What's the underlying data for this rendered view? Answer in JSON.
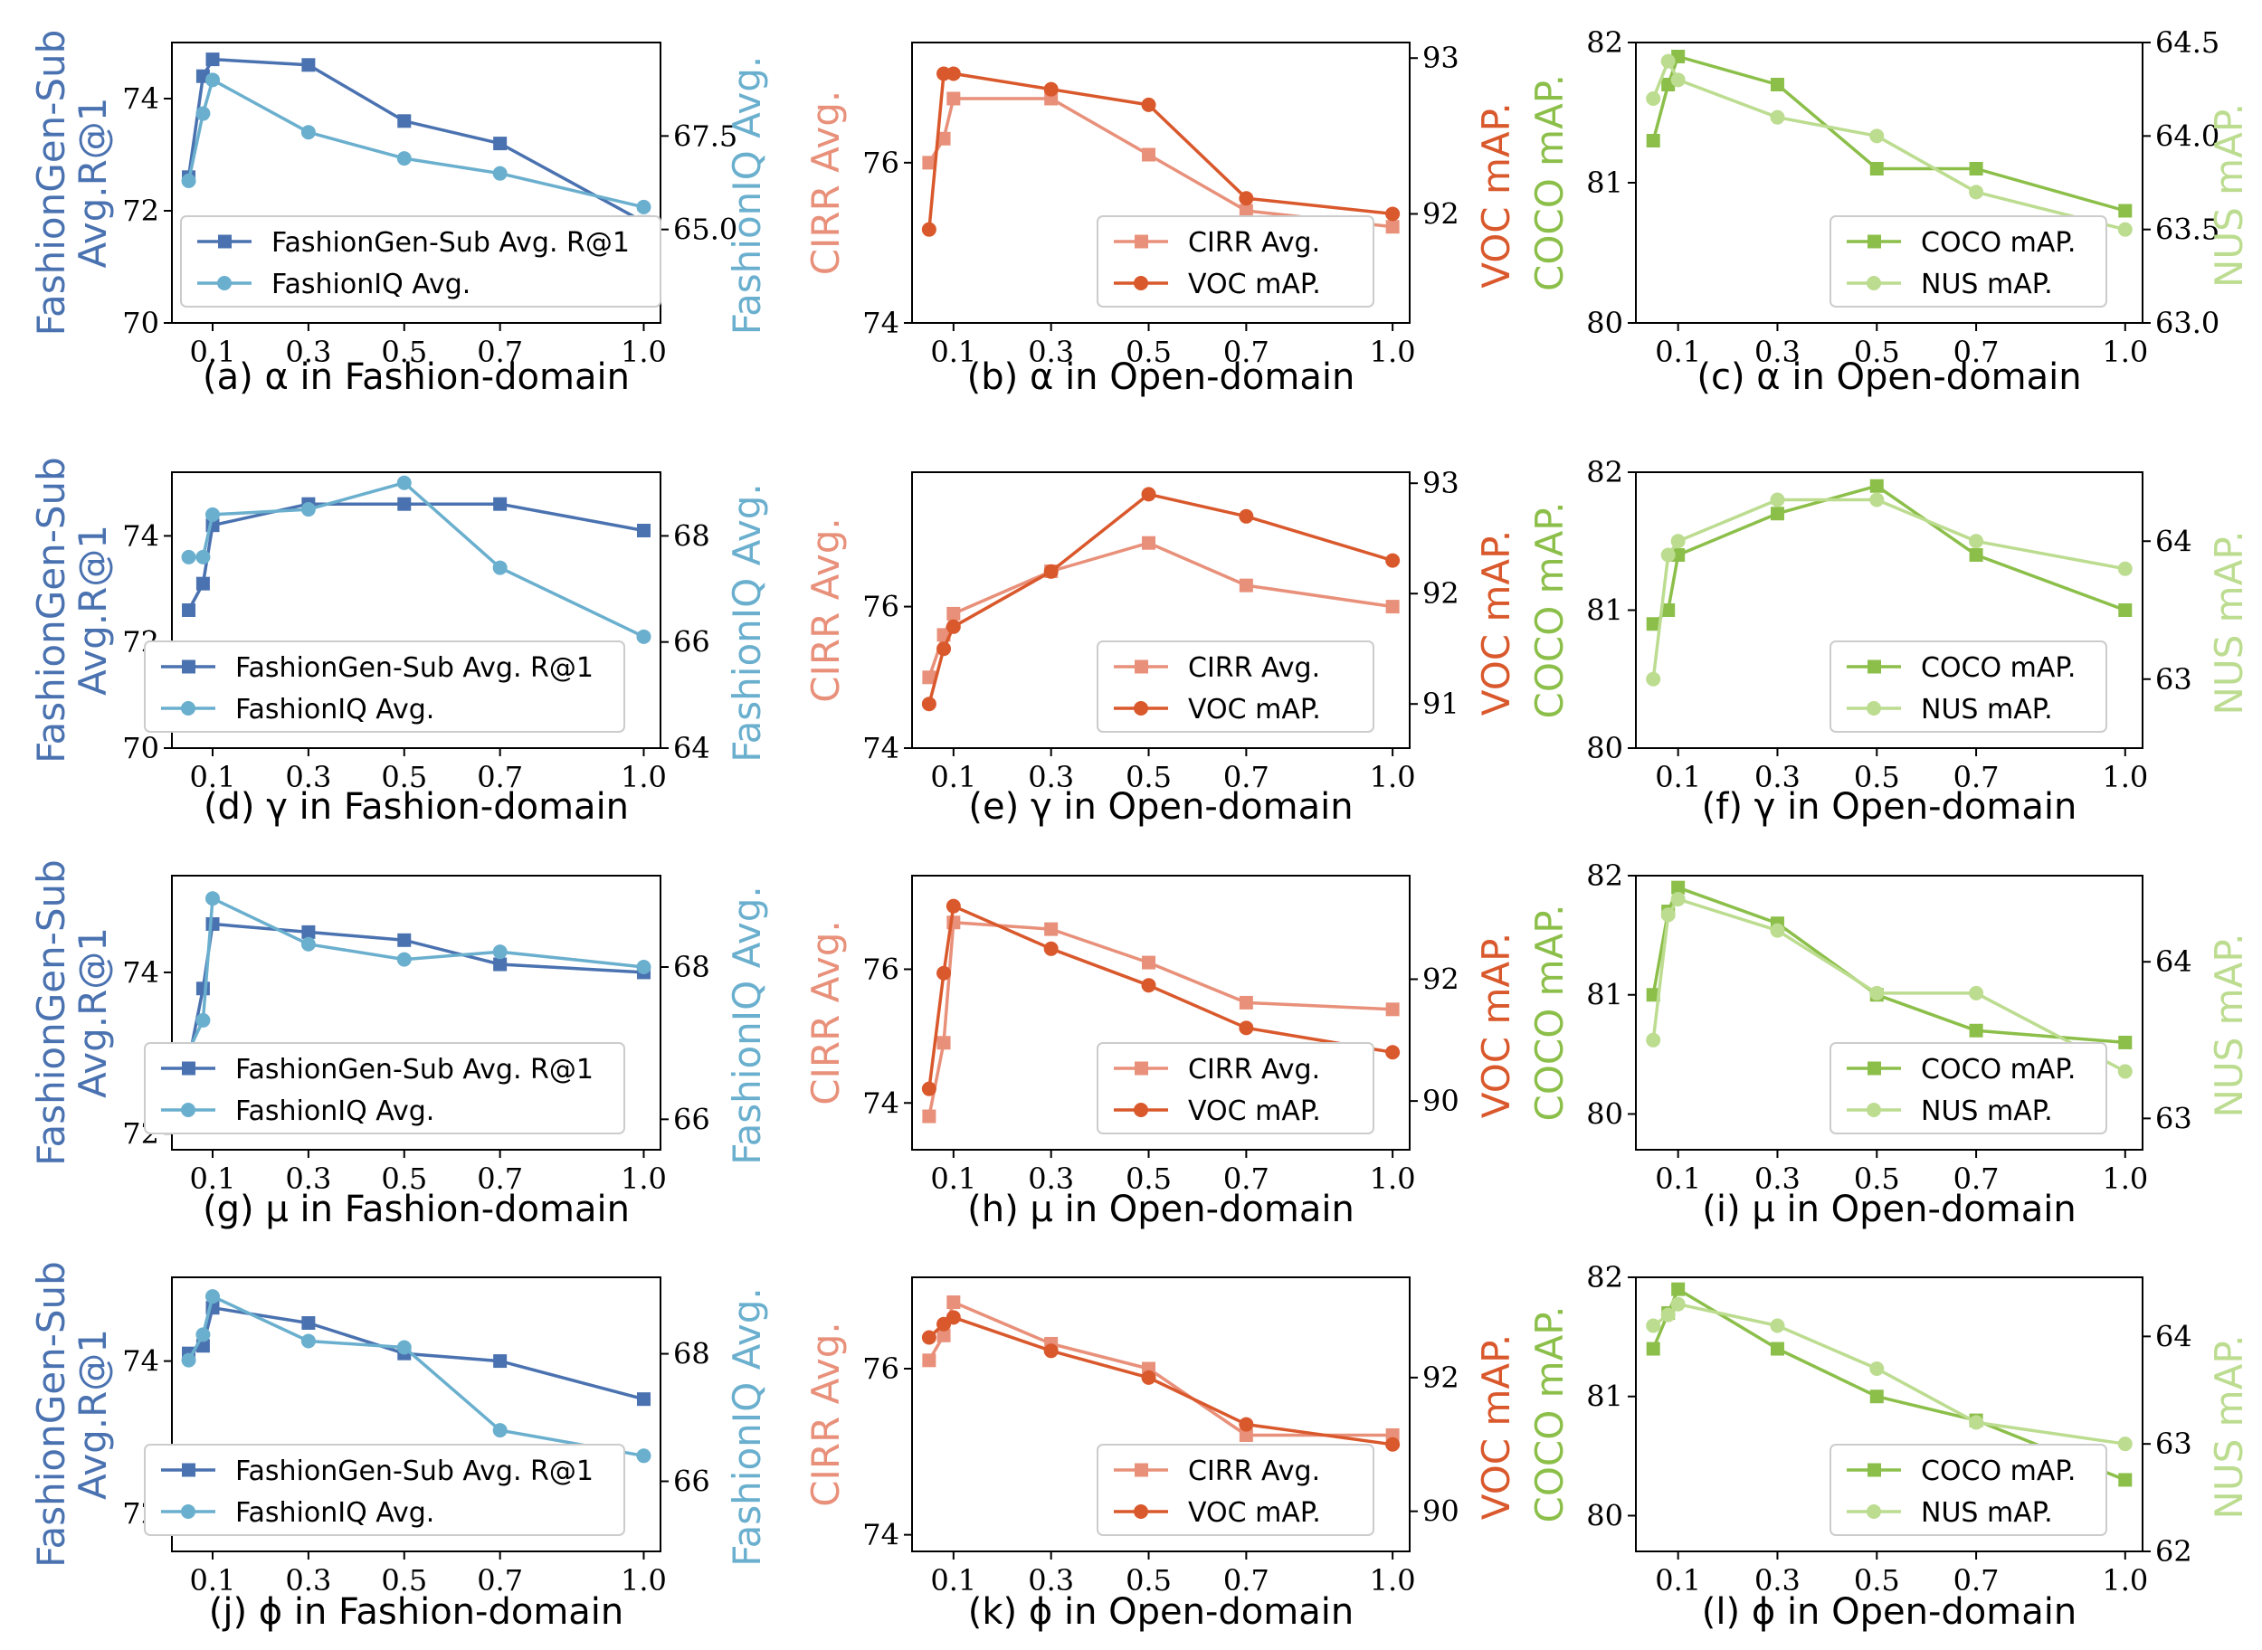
{
  "colors": {
    "fashion_left": "#4a72b0",
    "fashion_right": "#6aafce",
    "open_left": "#e8907a",
    "open_right": "#d9582c",
    "coco": "#8cbf4a",
    "nus": "#bcdc90"
  },
  "chart_data": [
    {
      "type": "line",
      "caption": "(a) α in Fashion-domain",
      "x_ticks": [
        "0.1",
        "0.3",
        "0.5",
        "0.7",
        "1.0"
      ],
      "ylabel_left": [
        "FashionGen-Sub",
        "Avg.R@1"
      ],
      "ylabel_right": "FashionIQ Avg.",
      "ylim_left": [
        70,
        75
      ],
      "yticks_left": [
        "70",
        "72",
        "74"
      ],
      "ylim_right": [
        62.5,
        70
      ],
      "yticks_right": [
        "65.0",
        "67.5"
      ],
      "legend_position": "lower-left",
      "series": [
        {
          "name": "FashionGen-Sub Avg. R@1",
          "axis": "left",
          "marker": "square",
          "x": [
            0.05,
            0.08,
            0.1,
            0.3,
            0.5,
            0.7,
            1.0
          ],
          "y": [
            72.6,
            74.4,
            74.7,
            74.6,
            73.6,
            73.2,
            71.8
          ]
        },
        {
          "name": "FashionIQ Avg.",
          "axis": "right",
          "marker": "circle",
          "x": [
            0.05,
            0.08,
            0.1,
            0.3,
            0.5,
            0.7,
            1.0
          ],
          "y": [
            66.3,
            68.1,
            69.0,
            67.6,
            66.9,
            66.5,
            65.6
          ]
        }
      ]
    },
    {
      "type": "line",
      "caption": "(b) α in Open-domain",
      "x_ticks": [
        "0.1",
        "0.3",
        "0.5",
        "0.7",
        "1.0"
      ],
      "ylabel_left": [
        "CIRR Avg."
      ],
      "ylabel_right": "VOC mAP.",
      "ylim_left": [
        74,
        77.5
      ],
      "yticks_left": [
        "74",
        "76"
      ],
      "ylim_right": [
        91.3,
        93.1
      ],
      "yticks_right": [
        "92",
        "93"
      ],
      "legend_position": "lower-right",
      "series": [
        {
          "name": "CIRR Avg.",
          "axis": "left",
          "marker": "square",
          "x": [
            0.05,
            0.08,
            0.1,
            0.3,
            0.5,
            0.7,
            1.0
          ],
          "y": [
            76.0,
            76.3,
            76.8,
            76.8,
            76.1,
            75.4,
            75.2
          ]
        },
        {
          "name": "VOC mAP.",
          "axis": "right",
          "marker": "circle",
          "x": [
            0.05,
            0.08,
            0.1,
            0.3,
            0.5,
            0.7,
            1.0
          ],
          "y": [
            91.9,
            92.9,
            92.9,
            92.8,
            92.7,
            92.1,
            92.0
          ]
        }
      ]
    },
    {
      "type": "line",
      "caption": "(c) α in Open-domain",
      "x_ticks": [
        "0.1",
        "0.3",
        "0.5",
        "0.7",
        "1.0"
      ],
      "ylabel_left": [
        "COCO mAP."
      ],
      "ylabel_right": "NUS mAP.",
      "ylim_left": [
        80,
        82
      ],
      "yticks_left": [
        "80",
        "81",
        "82"
      ],
      "ylim_right": [
        63.0,
        64.5
      ],
      "yticks_right": [
        "63.0",
        "63.5",
        "64.0",
        "64.5"
      ],
      "legend_position": "lower-right",
      "series": [
        {
          "name": "COCO mAP.",
          "axis": "left",
          "marker": "square",
          "x": [
            0.05,
            0.08,
            0.1,
            0.3,
            0.5,
            0.7,
            1.0
          ],
          "y": [
            81.3,
            81.7,
            81.9,
            81.7,
            81.1,
            81.1,
            80.8
          ]
        },
        {
          "name": "NUS mAP.",
          "axis": "right",
          "marker": "circle",
          "x": [
            0.05,
            0.08,
            0.1,
            0.3,
            0.5,
            0.7,
            1.0
          ],
          "y": [
            64.2,
            64.4,
            64.3,
            64.1,
            64.0,
            63.7,
            63.5
          ]
        }
      ]
    },
    {
      "type": "line",
      "caption": "(d) γ in Fashion-domain",
      "x_ticks": [
        "0.1",
        "0.3",
        "0.5",
        "0.7",
        "1.0"
      ],
      "ylabel_left": [
        "FashionGen-Sub",
        "Avg.R@1"
      ],
      "ylabel_right": "FashionIQ Avg.",
      "ylim_left": [
        70,
        75.2
      ],
      "yticks_left": [
        "70",
        "72",
        "74"
      ],
      "ylim_right": [
        64,
        69.2
      ],
      "yticks_right": [
        "64",
        "66",
        "68"
      ],
      "legend_position": "lower-right",
      "series": [
        {
          "name": "FashionGen-Sub Avg. R@1",
          "axis": "left",
          "marker": "square",
          "x": [
            0.05,
            0.08,
            0.1,
            0.3,
            0.5,
            0.7,
            1.0
          ],
          "y": [
            72.6,
            73.1,
            74.2,
            74.6,
            74.6,
            74.6,
            74.1
          ]
        },
        {
          "name": "FashionIQ Avg.",
          "axis": "right",
          "marker": "circle",
          "x": [
            0.05,
            0.08,
            0.1,
            0.3,
            0.5,
            0.7,
            1.0
          ],
          "y": [
            67.6,
            67.6,
            68.4,
            68.5,
            69.0,
            67.4,
            66.1
          ]
        }
      ]
    },
    {
      "type": "line",
      "caption": "(e) γ in Open-domain",
      "x_ticks": [
        "0.1",
        "0.3",
        "0.5",
        "0.7",
        "1.0"
      ],
      "ylabel_left": [
        "CIRR Avg."
      ],
      "ylabel_right": "VOC mAP.",
      "ylim_left": [
        74,
        77.9
      ],
      "yticks_left": [
        "74",
        "76"
      ],
      "ylim_right": [
        90.6,
        93.1
      ],
      "yticks_right": [
        "91",
        "92",
        "93"
      ],
      "legend_position": "lower-right",
      "series": [
        {
          "name": "CIRR Avg.",
          "axis": "left",
          "marker": "square",
          "x": [
            0.05,
            0.08,
            0.1,
            0.3,
            0.5,
            0.7,
            1.0
          ],
          "y": [
            75.0,
            75.6,
            75.9,
            76.5,
            76.9,
            76.3,
            76.0
          ]
        },
        {
          "name": "VOC mAP.",
          "axis": "right",
          "marker": "circle",
          "x": [
            0.05,
            0.08,
            0.1,
            0.3,
            0.5,
            0.7,
            1.0
          ],
          "y": [
            91.0,
            91.5,
            91.7,
            92.2,
            92.9,
            92.7,
            92.3
          ]
        }
      ]
    },
    {
      "type": "line",
      "caption": "(f) γ in Open-domain",
      "x_ticks": [
        "0.1",
        "0.3",
        "0.5",
        "0.7",
        "1.0"
      ],
      "ylabel_left": [
        "COCO mAP."
      ],
      "ylabel_right": "NUS mAP.",
      "ylim_left": [
        80,
        82
      ],
      "yticks_left": [
        "80",
        "81",
        "82"
      ],
      "ylim_right": [
        62.5,
        64.5
      ],
      "yticks_right": [
        "63",
        "64"
      ],
      "legend_position": "lower-right",
      "series": [
        {
          "name": "COCO mAP.",
          "axis": "left",
          "marker": "square",
          "x": [
            0.05,
            0.08,
            0.1,
            0.3,
            0.5,
            0.7,
            1.0
          ],
          "y": [
            80.9,
            81.0,
            81.4,
            81.7,
            81.9,
            81.4,
            81.0
          ]
        },
        {
          "name": "NUS mAP.",
          "axis": "right",
          "marker": "circle",
          "x": [
            0.05,
            0.08,
            0.1,
            0.3,
            0.5,
            0.7,
            1.0
          ],
          "y": [
            63.0,
            63.9,
            64.0,
            64.3,
            64.3,
            64.0,
            63.8
          ]
        }
      ]
    },
    {
      "type": "line",
      "caption": "(g) μ in Fashion-domain",
      "x_ticks": [
        "0.1",
        "0.3",
        "0.5",
        "0.7",
        "1.0"
      ],
      "ylabel_left": [
        "FashionGen-Sub",
        "Avg.R@1"
      ],
      "ylabel_right": "FashionIQ Avg.",
      "ylim_left": [
        71.8,
        75.2
      ],
      "yticks_left": [
        "72",
        "74"
      ],
      "ylim_right": [
        65.6,
        69.2
      ],
      "yticks_right": [
        "66",
        "68"
      ],
      "legend_position": "lower-right",
      "series": [
        {
          "name": "FashionGen-Sub Avg. R@1",
          "axis": "left",
          "marker": "square",
          "x": [
            0.05,
            0.08,
            0.1,
            0.3,
            0.5,
            0.7,
            1.0
          ],
          "y": [
            72.9,
            73.8,
            74.6,
            74.5,
            74.4,
            74.1,
            74.0
          ]
        },
        {
          "name": "FashionIQ Avg.",
          "axis": "right",
          "marker": "circle",
          "x": [
            0.05,
            0.08,
            0.1,
            0.3,
            0.5,
            0.7,
            1.0
          ],
          "y": [
            66.9,
            67.3,
            68.9,
            68.3,
            68.1,
            68.2,
            68.0
          ]
        }
      ]
    },
    {
      "type": "line",
      "caption": "(h) μ in Open-domain",
      "x_ticks": [
        "0.1",
        "0.3",
        "0.5",
        "0.7",
        "1.0"
      ],
      "ylabel_left": [
        "CIRR Avg."
      ],
      "ylabel_right": "VOC mAP.",
      "ylim_left": [
        73.3,
        77.4
      ],
      "yticks_left": [
        "74",
        "76"
      ],
      "ylim_right": [
        89.2,
        93.7
      ],
      "yticks_right": [
        "90",
        "92"
      ],
      "legend_position": "lower-right",
      "series": [
        {
          "name": "CIRR Avg.",
          "axis": "left",
          "marker": "square",
          "x": [
            0.05,
            0.08,
            0.1,
            0.3,
            0.5,
            0.7,
            1.0
          ],
          "y": [
            73.8,
            74.9,
            76.7,
            76.6,
            76.1,
            75.5,
            75.4
          ]
        },
        {
          "name": "VOC mAP.",
          "axis": "right",
          "marker": "circle",
          "x": [
            0.05,
            0.08,
            0.1,
            0.3,
            0.5,
            0.7,
            1.0
          ],
          "y": [
            90.2,
            92.1,
            93.2,
            92.5,
            91.9,
            91.2,
            90.8
          ]
        }
      ]
    },
    {
      "type": "line",
      "caption": "(i) μ in Open-domain",
      "x_ticks": [
        "0.1",
        "0.3",
        "0.5",
        "0.7",
        "1.0"
      ],
      "ylabel_left": [
        "COCO mAP."
      ],
      "ylabel_right": "NUS mAP.",
      "ylim_left": [
        79.7,
        82.0
      ],
      "yticks_left": [
        "80",
        "81",
        "82"
      ],
      "ylim_right": [
        62.8,
        64.55
      ],
      "yticks_right": [
        "63",
        "64"
      ],
      "legend_position": "lower-right",
      "series": [
        {
          "name": "COCO mAP.",
          "axis": "left",
          "marker": "square",
          "x": [
            0.05,
            0.08,
            0.1,
            0.3,
            0.5,
            0.7,
            1.0
          ],
          "y": [
            81.0,
            81.7,
            81.9,
            81.6,
            81.0,
            80.7,
            80.6
          ]
        },
        {
          "name": "NUS mAP.",
          "axis": "right",
          "marker": "circle",
          "x": [
            0.05,
            0.08,
            0.1,
            0.3,
            0.5,
            0.7,
            1.0
          ],
          "y": [
            63.5,
            64.3,
            64.4,
            64.2,
            63.8,
            63.8,
            63.3
          ]
        }
      ]
    },
    {
      "type": "line",
      "caption": "(j) ϕ in Fashion-domain",
      "x_ticks": [
        "0.1",
        "0.3",
        "0.5",
        "0.7",
        "1.0"
      ],
      "ylabel_left": [
        "FashionGen-Sub",
        "Avg.R@1"
      ],
      "ylabel_right": "FashionIQ Avg.",
      "ylim_left": [
        71.5,
        75.1
      ],
      "yticks_left": [
        "72",
        "74"
      ],
      "ylim_right": [
        64.9,
        69.2
      ],
      "yticks_right": [
        "66",
        "68"
      ],
      "legend_position": "lower-right",
      "series": [
        {
          "name": "FashionGen-Sub Avg. R@1",
          "axis": "left",
          "marker": "square",
          "x": [
            0.05,
            0.08,
            0.1,
            0.3,
            0.5,
            0.7,
            1.0
          ],
          "y": [
            74.1,
            74.2,
            74.7,
            74.5,
            74.1,
            74.0,
            73.5
          ]
        },
        {
          "name": "FashionIQ Avg.",
          "axis": "right",
          "marker": "circle",
          "x": [
            0.05,
            0.08,
            0.1,
            0.3,
            0.5,
            0.7,
            1.0
          ],
          "y": [
            67.9,
            68.3,
            68.9,
            68.2,
            68.1,
            66.8,
            66.4
          ]
        }
      ]
    },
    {
      "type": "line",
      "caption": "(k) ϕ in Open-domain",
      "x_ticks": [
        "0.1",
        "0.3",
        "0.5",
        "0.7",
        "1.0"
      ],
      "ylabel_left": [
        "CIRR Avg."
      ],
      "ylabel_right": "VOC mAP.",
      "ylim_left": [
        73.8,
        77.1
      ],
      "yticks_left": [
        "74",
        "76"
      ],
      "ylim_right": [
        89.4,
        93.5
      ],
      "yticks_right": [
        "90",
        "92"
      ],
      "legend_position": "lower-right",
      "series": [
        {
          "name": "CIRR Avg.",
          "axis": "left",
          "marker": "square",
          "x": [
            0.05,
            0.08,
            0.1,
            0.3,
            0.5,
            0.7,
            1.0
          ],
          "y": [
            76.1,
            76.4,
            76.8,
            76.3,
            76.0,
            75.2,
            75.2
          ]
        },
        {
          "name": "VOC mAP.",
          "axis": "right",
          "marker": "circle",
          "x": [
            0.05,
            0.08,
            0.1,
            0.3,
            0.5,
            0.7,
            1.0
          ],
          "y": [
            92.6,
            92.8,
            92.9,
            92.4,
            92.0,
            91.3,
            91.0
          ]
        }
      ]
    },
    {
      "type": "line",
      "caption": "(l) ϕ in Open-domain",
      "x_ticks": [
        "0.1",
        "0.3",
        "0.5",
        "0.7",
        "1.0"
      ],
      "ylabel_left": [
        "COCO mAP."
      ],
      "ylabel_right": "NUS mAP.",
      "ylim_left": [
        79.7,
        82.0
      ],
      "yticks_left": [
        "80",
        "81",
        "82"
      ],
      "ylim_right": [
        62.0,
        64.55
      ],
      "yticks_right": [
        "62",
        "63",
        "64"
      ],
      "legend_position": "lower-right",
      "series": [
        {
          "name": "COCO mAP.",
          "axis": "left",
          "marker": "square",
          "x": [
            0.05,
            0.08,
            0.1,
            0.3,
            0.5,
            0.7,
            1.0
          ],
          "y": [
            81.4,
            81.7,
            81.9,
            81.4,
            81.0,
            80.8,
            80.3
          ]
        },
        {
          "name": "NUS mAP.",
          "axis": "right",
          "marker": "circle",
          "x": [
            0.05,
            0.08,
            0.1,
            0.3,
            0.5,
            0.7,
            1.0
          ],
          "y": [
            64.1,
            64.2,
            64.3,
            64.1,
            63.7,
            63.2,
            63.0
          ]
        }
      ]
    }
  ]
}
